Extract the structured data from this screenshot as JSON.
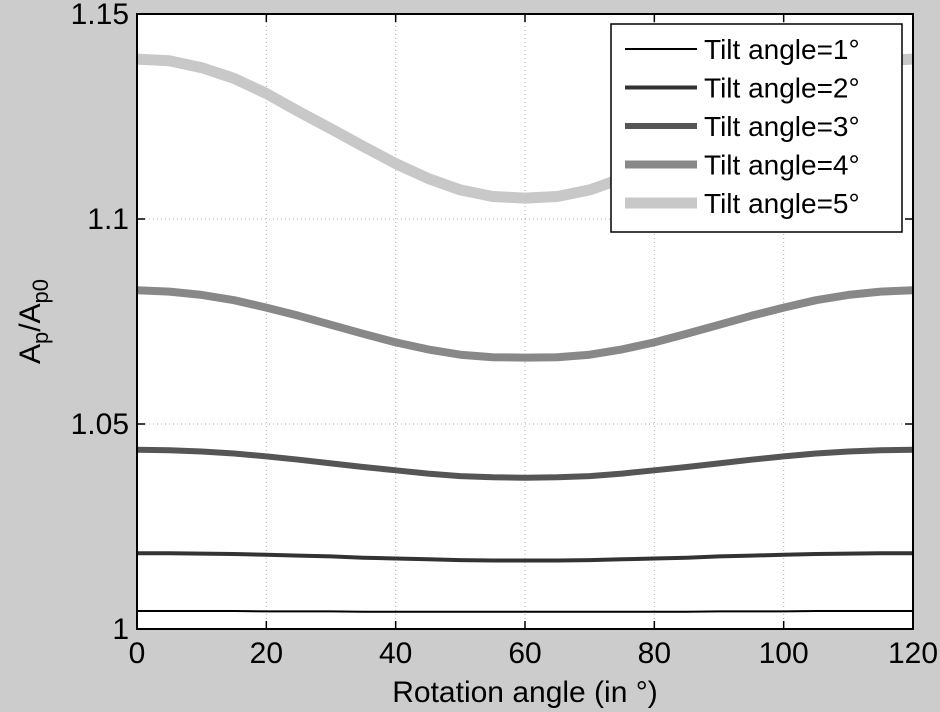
{
  "chart_data": {
    "type": "line",
    "title": "",
    "xlabel": "Rotation angle (in °)",
    "ylabel": {
      "parts": [
        {
          "text": "A",
          "sub": false
        },
        {
          "text": "p",
          "sub": true
        },
        {
          "text": "/A",
          "sub": false
        },
        {
          "text": "p0",
          "sub": true
        }
      ]
    },
    "xlim": [
      0,
      120
    ],
    "ylim": [
      1,
      1.15
    ],
    "xticks": [
      0,
      20,
      40,
      60,
      80,
      100,
      120
    ],
    "xtick_labels": [
      "0",
      "20",
      "40",
      "60",
      "80",
      "100",
      "120"
    ],
    "yticks": [
      1,
      1.05,
      1.1,
      1.15
    ],
    "ytick_labels": [
      "1",
      "1.05",
      "1.1",
      "1.15"
    ],
    "grid": true,
    "legend_position": "top-right",
    "x": [
      0,
      5,
      10,
      15,
      20,
      25,
      30,
      35,
      40,
      45,
      50,
      55,
      60,
      65,
      70,
      75,
      80,
      85,
      90,
      95,
      100,
      105,
      110,
      115,
      120
    ],
    "series": [
      {
        "name": "Tilt angle=1°",
        "color": "#000000",
        "values": [
          1.0044,
          1.0044,
          1.0044,
          1.0044,
          1.0043,
          1.0043,
          1.0043,
          1.0042,
          1.0042,
          1.0042,
          1.0042,
          1.0042,
          1.0042,
          1.0042,
          1.0042,
          1.0042,
          1.0042,
          1.0042,
          1.0043,
          1.0043,
          1.0043,
          1.0044,
          1.0044,
          1.0044,
          1.0044
        ]
      },
      {
        "name": "Tilt angle=2°",
        "color": "#333333",
        "values": [
          1.0185,
          1.0185,
          1.0184,
          1.0183,
          1.0181,
          1.0179,
          1.0177,
          1.0174,
          1.0172,
          1.017,
          1.0168,
          1.0167,
          1.0167,
          1.0167,
          1.0168,
          1.017,
          1.0172,
          1.0174,
          1.0177,
          1.0179,
          1.0181,
          1.0183,
          1.0184,
          1.0185,
          1.0185
        ]
      },
      {
        "name": "Tilt angle=3°",
        "color": "#555555",
        "values": [
          1.0437,
          1.0436,
          1.0433,
          1.0428,
          1.0421,
          1.0413,
          1.0404,
          1.0395,
          1.0387,
          1.0379,
          1.0373,
          1.037,
          1.0369,
          1.037,
          1.0373,
          1.0379,
          1.0387,
          1.0395,
          1.0404,
          1.0413,
          1.0421,
          1.0428,
          1.0433,
          1.0436,
          1.0437
        ]
      },
      {
        "name": "Tilt angle=4°",
        "color": "#888888",
        "values": [
          1.0826,
          1.0823,
          1.0815,
          1.0802,
          1.0784,
          1.0764,
          1.0742,
          1.072,
          1.0699,
          1.0682,
          1.0669,
          1.0663,
          1.0662,
          1.0663,
          1.0669,
          1.0682,
          1.0699,
          1.072,
          1.0742,
          1.0764,
          1.0784,
          1.0802,
          1.0815,
          1.0823,
          1.0826
        ]
      },
      {
        "name": "Tilt angle=5°",
        "color": "#c8c8c8",
        "values": [
          1.139,
          1.1386,
          1.1369,
          1.1343,
          1.1306,
          1.1262,
          1.122,
          1.1177,
          1.1135,
          1.1099,
          1.1071,
          1.1055,
          1.1051,
          1.1055,
          1.1071,
          1.1099,
          1.1135,
          1.1177,
          1.122,
          1.1262,
          1.1306,
          1.1343,
          1.1369,
          1.1386,
          1.139
        ]
      }
    ]
  }
}
